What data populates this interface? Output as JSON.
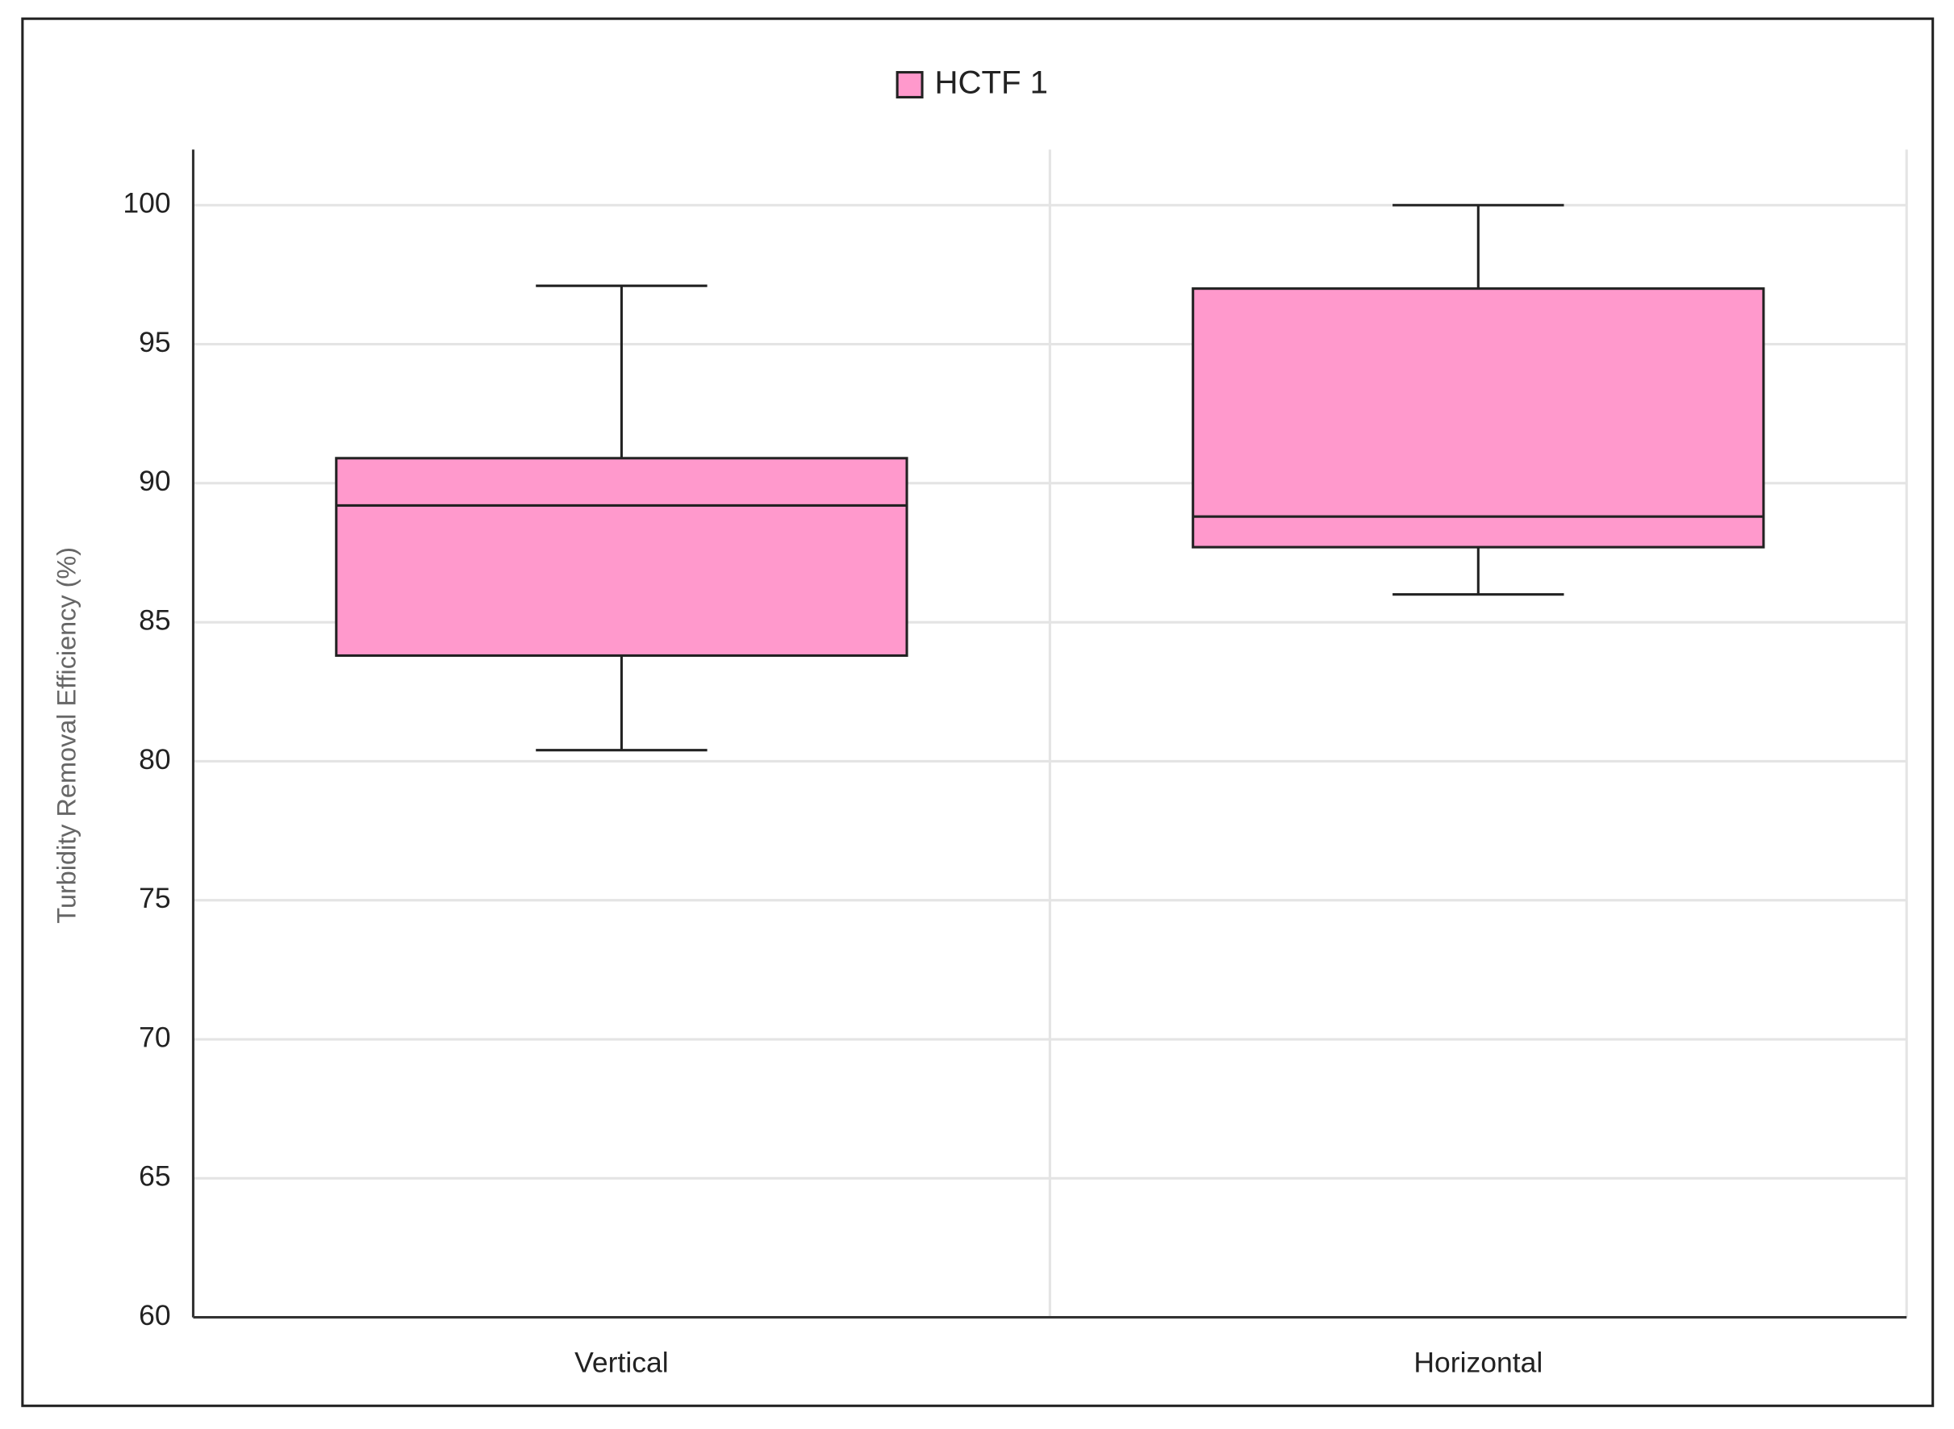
{
  "chart_data": {
    "type": "box",
    "y_label": "Turbidity Removal Efficiency  (%)",
    "categories": [
      "Vertical",
      "Horizontal"
    ],
    "series": [
      {
        "name": "HCTF 1",
        "color": "#ff99cc",
        "min": [
          80.4,
          86.0
        ],
        "q1": [
          83.8,
          87.7
        ],
        "median": [
          89.2,
          88.8
        ],
        "q3": [
          90.9,
          97.0
        ],
        "max": [
          97.1,
          100
        ]
      }
    ],
    "ylim": [
      60,
      102
    ],
    "yticks": [
      60,
      65,
      70,
      75,
      80,
      85,
      90,
      95,
      100
    ],
    "grid": true,
    "legend": "top"
  }
}
